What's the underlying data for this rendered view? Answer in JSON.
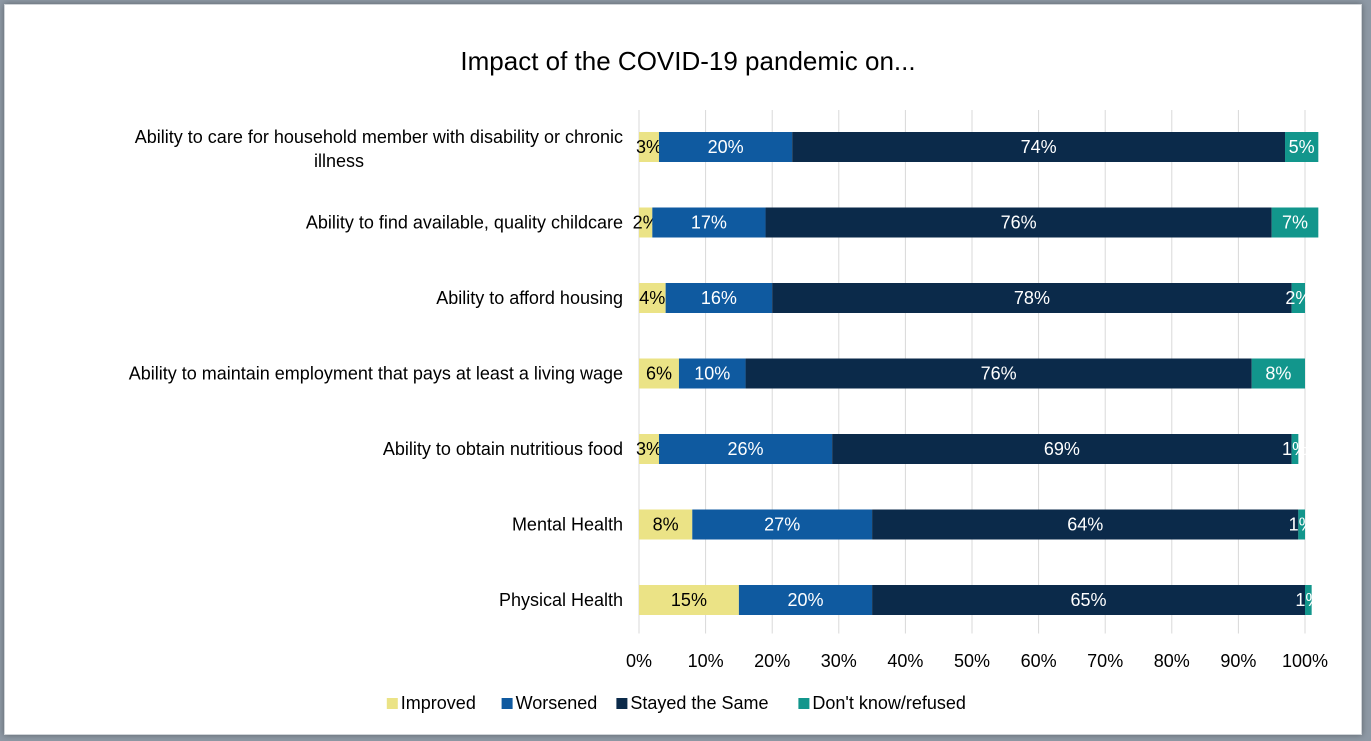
{
  "chart_data": {
    "type": "bar",
    "orientation": "horizontal",
    "stacked": true,
    "percent_stacked": true,
    "title": "Impact of the COVID-19 pandemic on...",
    "categories": [
      [
        "Ability to care for household member with disability or chronic",
        "illness"
      ],
      [
        "Ability to find available, quality childcare"
      ],
      [
        "Ability to afford housing"
      ],
      [
        "Ability to maintain employment that pays at least a living wage"
      ],
      [
        "Ability to obtain nutritious food"
      ],
      [
        "Mental Health"
      ],
      [
        "Physical Health"
      ]
    ],
    "series": [
      {
        "name": "Improved",
        "color": "#ebe386",
        "label_color": "#000000",
        "values": [
          3,
          2,
          4,
          6,
          3,
          8,
          15
        ],
        "labels": [
          "3%",
          "2%",
          "4%",
          "6%",
          "3%",
          "8%",
          "15%"
        ]
      },
      {
        "name": "Worsened",
        "color": "#0f5aa0",
        "label_color": "#ffffff",
        "values": [
          20,
          17,
          16,
          10,
          26,
          27,
          20
        ],
        "labels": [
          "20%",
          "17%",
          "16%",
          "10%",
          "26%",
          "27%",
          "20%"
        ]
      },
      {
        "name": "Stayed the Same",
        "color": "#0b2a4a",
        "label_color": "#ffffff",
        "values": [
          74,
          76,
          78,
          76,
          69,
          64,
          65
        ],
        "labels": [
          "74%",
          "76%",
          "78%",
          "76%",
          "69%",
          "64%",
          "65%"
        ]
      },
      {
        "name": "Don't know/refused",
        "color": "#12968c",
        "label_color": "#ffffff",
        "values": [
          5,
          7,
          2,
          8,
          1,
          1,
          1
        ],
        "labels": [
          "5%",
          "7%",
          "2%",
          "8%",
          "1%",
          "1%",
          "1%"
        ]
      }
    ],
    "x_ticks": [
      "0%",
      "10%",
      "20%",
      "30%",
      "40%",
      "50%",
      "60%",
      "70%",
      "80%",
      "90%",
      "100%"
    ],
    "xlim": [
      0,
      100
    ],
    "grid": true,
    "grid_color": "#d9d9d9",
    "legend_position": "bottom"
  }
}
